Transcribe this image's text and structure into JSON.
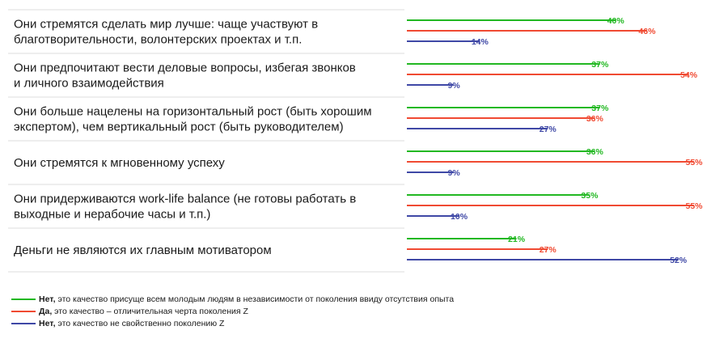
{
  "chart_data": {
    "type": "bar",
    "orientation": "horizontal",
    "categories": [
      [
        "Они стремятся сделать мир лучше: чаще участвуют в",
        "благотворительности, волонтерских проектах и т.п."
      ],
      [
        "Они предпочитают вести деловые вопросы, избегая звонков",
        "и личного взаимодействия"
      ],
      [
        "Они больше нацелены на горизонтальный рост (быть хорошим",
        "экспертом), чем вертикальный рост (быть руководителем)"
      ],
      [
        "Они стремятся к мгновенному успеху"
      ],
      [
        "Они придерживаются work-life balance (не готовы работать в",
        "выходные и нерабочие часы и т.п.)"
      ],
      [
        "Деньги не являются их главным мотиватором"
      ]
    ],
    "series": [
      {
        "key": "green",
        "color": "#22b822",
        "values": [
          40,
          37,
          37,
          36,
          35,
          21
        ],
        "labels": [
          "40%",
          "37%",
          "37%",
          "36%",
          "35%",
          "21%"
        ]
      },
      {
        "key": "red",
        "color": "#f04a32",
        "values": [
          46,
          54,
          36,
          55,
          55,
          27
        ],
        "labels": [
          "46%",
          "54%",
          "36%",
          "55%",
          "55%",
          "27%"
        ]
      },
      {
        "key": "blue",
        "color": "#3f48a6",
        "values": [
          14,
          9,
          27,
          9,
          10,
          52
        ],
        "labels": [
          "14%",
          "9%",
          "27%",
          "9%",
          "10%",
          "52%"
        ]
      }
    ],
    "xlim": [
      0,
      55
    ],
    "grid": false,
    "legend_position": "bottom-left"
  },
  "legend": [
    {
      "bold": "Нет,",
      "text": " это качество присуще всем молодым людям в независимости от поколения ввиду отсутствия опыта",
      "color": "#22b822"
    },
    {
      "bold": "Да,",
      "text": " это качество – отличительная черта поколения Z",
      "color": "#f04a32"
    },
    {
      "bold": "Нет,",
      "text": " это качество не свойственно поколению Z",
      "color": "#3f48a6"
    }
  ]
}
